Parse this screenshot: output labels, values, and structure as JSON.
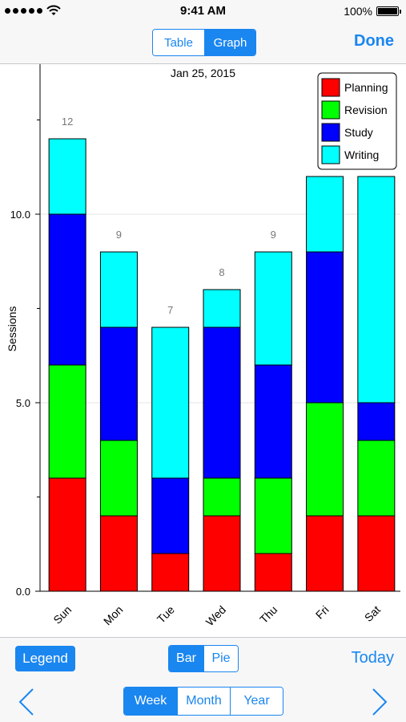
{
  "status_bar": {
    "time": "9:41 AM",
    "battery": "100%"
  },
  "nav": {
    "segments": [
      {
        "label": "Table",
        "selected": false
      },
      {
        "label": "Graph",
        "selected": true
      }
    ],
    "done_label": "Done"
  },
  "chart": {
    "date": "Jan 25, 2015"
  },
  "chart_data": {
    "type": "bar",
    "stacked": true,
    "title": "",
    "subtitle": "Jan 25, 2015",
    "xlabel": "",
    "ylabel": "Sessions",
    "categories": [
      "Sun",
      "Mon",
      "Tue",
      "Wed",
      "Thu",
      "Fri",
      "Sat"
    ],
    "series": [
      {
        "name": "Planning",
        "color": "#ff0000",
        "values": [
          3,
          2,
          1,
          2,
          1,
          2,
          2
        ]
      },
      {
        "name": "Revision",
        "color": "#00ff00",
        "values": [
          3,
          2,
          0,
          1,
          2,
          3,
          2
        ]
      },
      {
        "name": "Study",
        "color": "#0000ff",
        "values": [
          4,
          3,
          2,
          4,
          3,
          4,
          1
        ]
      },
      {
        "name": "Writing",
        "color": "#00ffff",
        "values": [
          2,
          2,
          4,
          1,
          3,
          2,
          6
        ]
      }
    ],
    "totals": [
      "12",
      "9",
      "7",
      "8",
      "9",
      "11",
      "11"
    ],
    "ylim": [
      0,
      14
    ],
    "yticks": [
      "0.0",
      "5.0",
      "10.0"
    ],
    "grid": true,
    "legend_position": "top-right"
  },
  "toolbar": {
    "legend_label": "Legend",
    "type_segments": [
      {
        "label": "Bar",
        "selected": true
      },
      {
        "label": "Pie",
        "selected": false
      }
    ],
    "today_label": "Today",
    "range_segments": [
      {
        "label": "Week",
        "selected": true
      },
      {
        "label": "Month",
        "selected": false
      },
      {
        "label": "Year",
        "selected": false
      }
    ]
  },
  "colors": {
    "accent": "#1a86f0"
  },
  "icons": {
    "prev": "chevron-left-icon",
    "next": "chevron-right-icon"
  }
}
